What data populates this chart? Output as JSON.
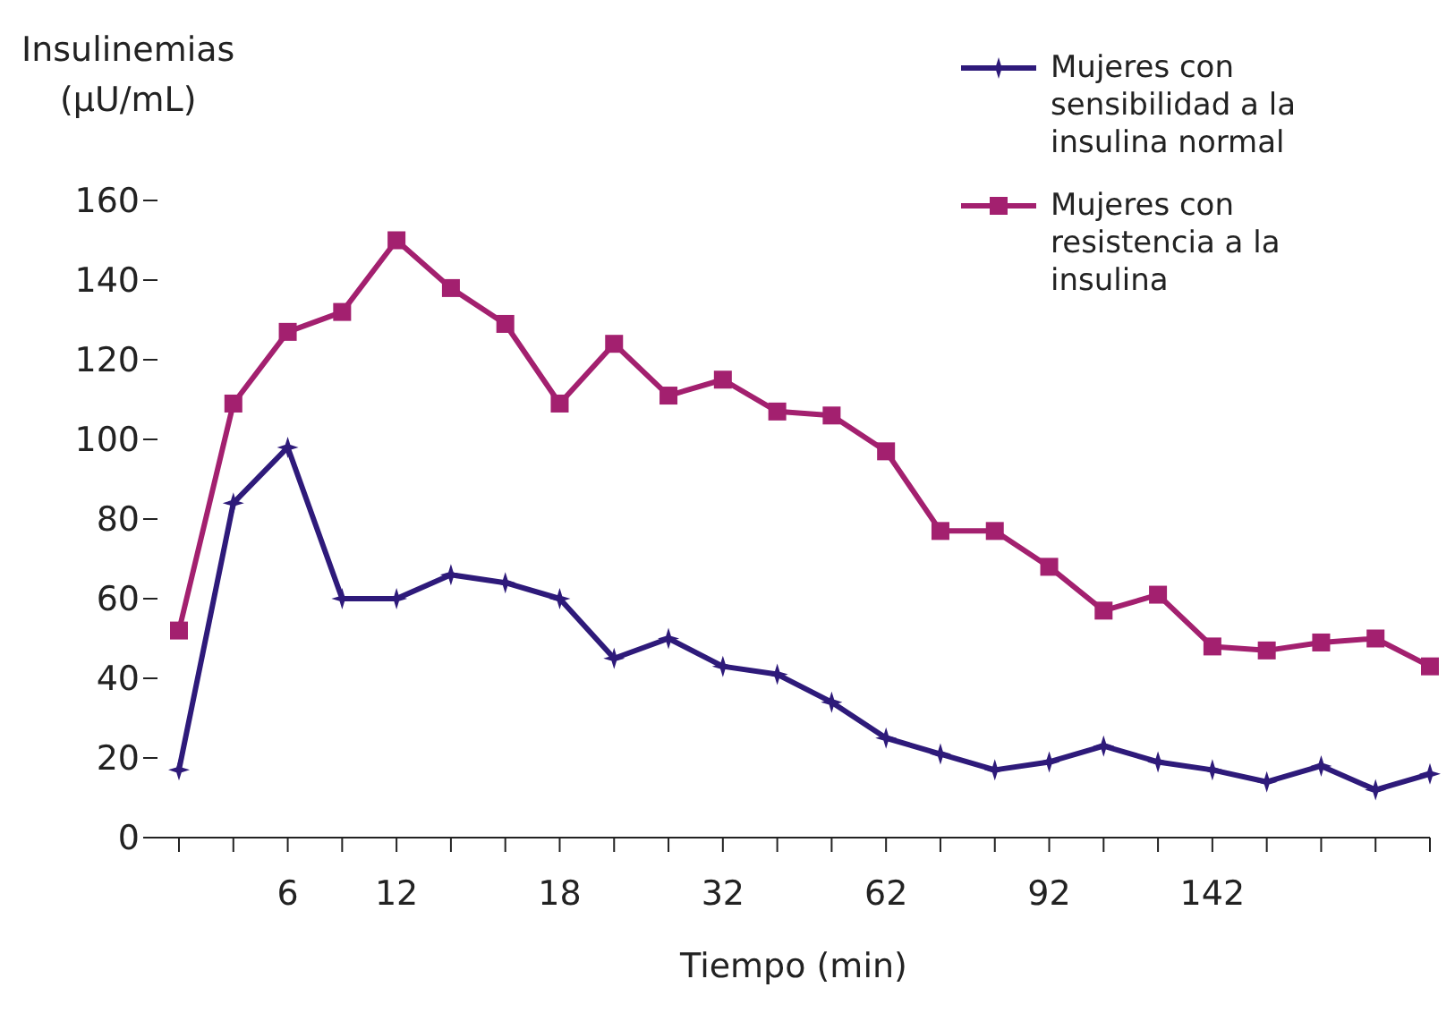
{
  "chart_data": {
    "type": "line",
    "ylabel": "Insulinemias (µU/mL)",
    "xlabel": "Tiempo (min)",
    "categories": [
      null,
      null,
      "6",
      null,
      "12",
      null,
      null,
      "18",
      null,
      null,
      "32",
      null,
      null,
      "62",
      null,
      null,
      "92",
      null,
      null,
      "142",
      null,
      null,
      null,
      null
    ],
    "series": [
      {
        "name": "Mujeres con sensibilidad a la insulina normal",
        "color": "#2e1a7a",
        "marker": "star",
        "values": [
          17,
          84,
          98,
          60,
          60,
          66,
          64,
          60,
          45,
          50,
          43,
          41,
          34,
          25,
          21,
          17,
          19,
          23,
          19,
          17,
          14,
          18,
          12,
          16
        ]
      },
      {
        "name": "Mujeres con resistencia a la insulina",
        "color": "#a3206f",
        "marker": "square",
        "values": [
          52,
          109,
          127,
          132,
          150,
          138,
          129,
          109,
          124,
          111,
          115,
          107,
          106,
          97,
          77,
          77,
          68,
          57,
          61,
          48,
          47,
          49,
          50,
          43
        ]
      }
    ],
    "ylim": [
      0,
      160
    ],
    "yticks": [
      0,
      20,
      40,
      60,
      80,
      100,
      120,
      140,
      160
    ],
    "grid": false,
    "legend": "top right"
  }
}
